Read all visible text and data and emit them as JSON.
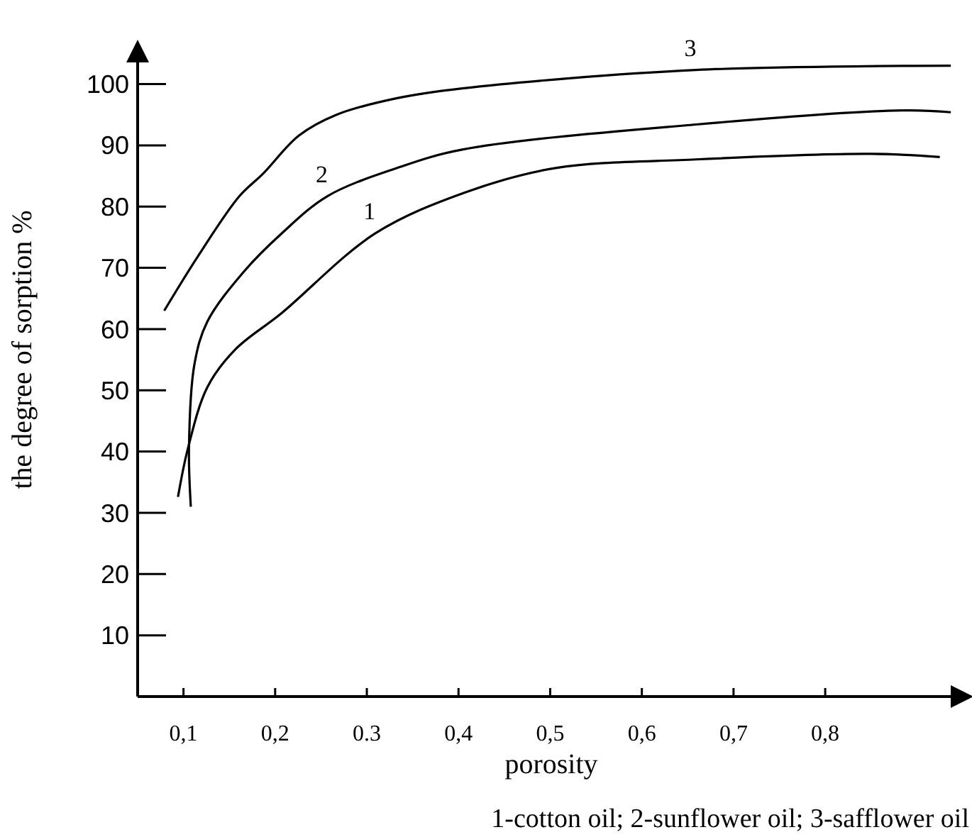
{
  "chart_data": {
    "type": "line",
    "xlabel": "porosity",
    "ylabel": "the degree of sorption %",
    "annotations": [
      "1-cotton oil; 2-sunflower oil; 3-safflower oil"
    ],
    "xlim": [
      0.05,
      0.94
    ],
    "ylim": [
      0,
      104
    ],
    "xticks": [
      {
        "value": 0.1,
        "label": "0,1"
      },
      {
        "value": 0.2,
        "label": "0,2"
      },
      0.3,
      {
        "value": 0.4,
        "label": "0,4"
      },
      {
        "value": 0.5,
        "label": "0,5"
      },
      {
        "value": 0.6,
        "label": "0,6"
      },
      {
        "value": 0.7,
        "label": "0,7"
      },
      {
        "value": 0.8,
        "label": "0,8"
      }
    ],
    "yticks": [
      10,
      20,
      30,
      40,
      50,
      60,
      70,
      80,
      90,
      100
    ],
    "grid": false,
    "marker": "none",
    "line_style": "solid",
    "series": [
      {
        "name": "1",
        "color": "#000000",
        "x": [
          0.094,
          0.105,
          0.126,
          0.156,
          0.207,
          0.309,
          0.409,
          0.506,
          0.659,
          0.85,
          0.925
        ],
        "values": [
          32.6,
          40.6,
          50.5,
          56.6,
          62.6,
          75.6,
          82.4,
          86.3,
          87.7,
          88.6,
          88.1
        ]
      },
      {
        "name": "2",
        "color": "#000000",
        "x": [
          0.108,
          0.106,
          0.112,
          0.126,
          0.166,
          0.207,
          0.257,
          0.333,
          0.404,
          0.659,
          0.887,
          0.937
        ],
        "values": [
          31,
          40.6,
          54.3,
          61.2,
          69.4,
          75.6,
          81.7,
          86.3,
          89.3,
          93.4,
          95.7,
          95.4
        ]
      },
      {
        "name": "3",
        "color": "#000000",
        "x": [
          0.079,
          0.115,
          0.161,
          0.187,
          0.226,
          0.267,
          0.333,
          0.404,
          0.659,
          0.937
        ],
        "values": [
          63,
          71.7,
          81.7,
          85.4,
          91.6,
          95,
          97.7,
          99.3,
          102.3,
          103
        ]
      }
    ]
  }
}
